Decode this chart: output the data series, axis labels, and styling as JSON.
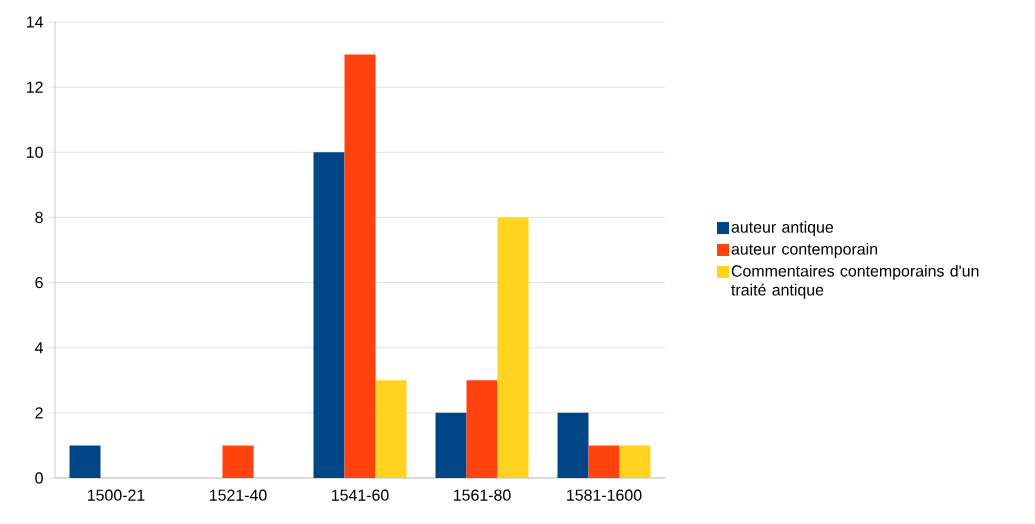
{
  "chart_data": {
    "type": "bar",
    "categories": [
      "1500-21",
      "1521-40",
      "1541-60",
      "1561-80",
      "1581-1600"
    ],
    "series": [
      {
        "name": "auteur antique",
        "color": "#004586",
        "values": [
          1,
          0,
          10,
          2,
          2
        ]
      },
      {
        "name": "auteur contemporain",
        "color": "#ff420e",
        "values": [
          0,
          1,
          13,
          3,
          1
        ]
      },
      {
        "name": "Commentaires contemporains d'un traité antique",
        "color": "#ffd320",
        "values": [
          0,
          0,
          3,
          8,
          1
        ]
      }
    ],
    "ylim": [
      0,
      14
    ],
    "yticks": [
      0,
      2,
      4,
      6,
      8,
      10,
      12,
      14
    ],
    "grid": "y",
    "legend": "right"
  }
}
